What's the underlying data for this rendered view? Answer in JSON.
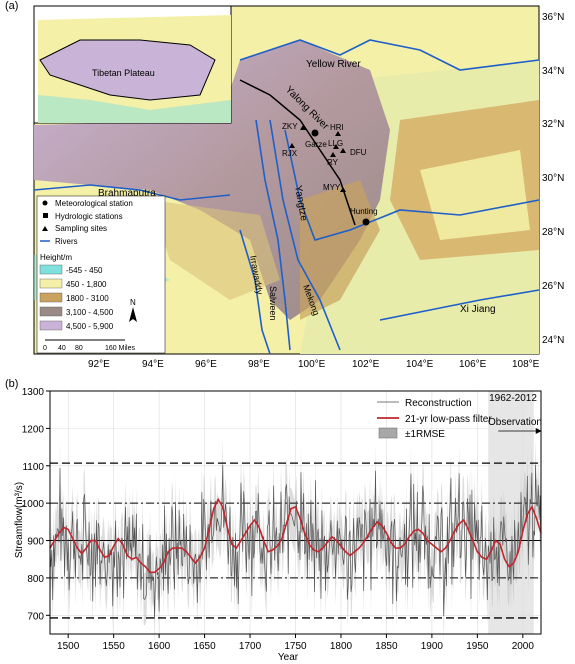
{
  "panel_a": {
    "label": "(a)",
    "lat_ticks": [
      "36°N",
      "34°N",
      "32°N",
      "30°N",
      "28°N",
      "26°N",
      "24°N"
    ],
    "lon_ticks": [
      "92°E",
      "94°E",
      "96°E",
      "98°E",
      "100°E",
      "102°E",
      "104°E",
      "106°E",
      "108°E"
    ],
    "inset_label": "Tibetan Plateau",
    "rivers": {
      "yellow": "Yellow River",
      "yalong": "Yalong River",
      "yangtze": "Yangtze",
      "brahmaputra": "Brahmaputra",
      "irrawaddy": "Irrawaddy",
      "salween": "Salween",
      "mekong": "Mekong",
      "xijiang": "Xi Jiang"
    },
    "sites": {
      "zky": "ZKY",
      "garze": "Garze",
      "hri": "HRI",
      "llg": "LLG",
      "dfu": "DFU",
      "ry": "RY",
      "rjx": "RJX",
      "myy": "MYY",
      "hunting": "Hunting"
    },
    "legend": {
      "met": "Meteorological station",
      "hydro": "Hydrologic stations",
      "sampling": "Sampling sites",
      "rivers": "Rivers",
      "height_title": "Height/m",
      "h1": "-545 - 450",
      "h2": "450 - 1,800",
      "h3": "1800 - 3100",
      "h4": "3,100 - 4,500",
      "h5": "4,500 - 5,900"
    },
    "north": "N",
    "scale": [
      "0",
      "40",
      "80",
      "160 Miles"
    ],
    "colors": {
      "h1": "#7fe0dc",
      "h2": "#f4f0a8",
      "h3": "#c8a25e",
      "h4": "#9a8a86",
      "h5": "#c9b3d6",
      "river": "#1f5fc9"
    }
  },
  "panel_b": {
    "label": "(b)",
    "ylabel": "Streamflow(m³/s)",
    "xlabel": "Year"
  },
  "chart_data": {
    "type": "line",
    "xlim": [
      1480,
      2020
    ],
    "ylim": [
      650,
      1300
    ],
    "xticks": [
      1500,
      1550,
      1600,
      1650,
      1700,
      1750,
      1800,
      1850,
      1900,
      1950,
      2000
    ],
    "yticks": [
      700,
      800,
      900,
      1000,
      1100,
      1200,
      1300
    ],
    "legend": [
      "Reconstruction",
      "21-yr low-pass filter",
      "±1RMSE"
    ],
    "legend_position": "top-right",
    "observation_period": {
      "label": "1962-2012",
      "note": "Observation",
      "start": 1962,
      "end": 2012
    },
    "mean": 900,
    "sd1_lines": [
      800,
      1000
    ],
    "sd2_lines": [
      693,
      1107
    ],
    "lowpass": {
      "x": [
        1480,
        1485,
        1490,
        1495,
        1500,
        1505,
        1510,
        1515,
        1520,
        1525,
        1530,
        1535,
        1540,
        1545,
        1550,
        1555,
        1560,
        1565,
        1570,
        1575,
        1580,
        1585,
        1590,
        1595,
        1600,
        1605,
        1610,
        1615,
        1620,
        1625,
        1630,
        1635,
        1640,
        1645,
        1650,
        1655,
        1660,
        1665,
        1670,
        1675,
        1680,
        1685,
        1690,
        1695,
        1700,
        1705,
        1710,
        1715,
        1720,
        1725,
        1730,
        1735,
        1740,
        1745,
        1750,
        1755,
        1760,
        1765,
        1770,
        1775,
        1780,
        1785,
        1790,
        1795,
        1800,
        1805,
        1810,
        1815,
        1820,
        1825,
        1830,
        1835,
        1840,
        1845,
        1850,
        1855,
        1860,
        1865,
        1870,
        1875,
        1880,
        1885,
        1890,
        1895,
        1900,
        1905,
        1910,
        1915,
        1920,
        1925,
        1930,
        1935,
        1940,
        1945,
        1950,
        1955,
        1960,
        1965,
        1970,
        1975,
        1980,
        1985,
        1990,
        1995,
        2000,
        2005,
        2010,
        2015,
        2020
      ],
      "y": [
        880,
        900,
        920,
        935,
        930,
        905,
        880,
        865,
        880,
        900,
        900,
        875,
        855,
        860,
        885,
        905,
        890,
        860,
        850,
        855,
        840,
        830,
        815,
        815,
        825,
        840,
        870,
        880,
        880,
        880,
        870,
        855,
        840,
        855,
        880,
        930,
        985,
        1010,
        990,
        935,
        890,
        880,
        900,
        920,
        940,
        955,
        935,
        900,
        870,
        875,
        885,
        905,
        945,
        985,
        990,
        960,
        920,
        890,
        875,
        870,
        880,
        895,
        910,
        900,
        885,
        870,
        860,
        870,
        880,
        895,
        915,
        935,
        950,
        940,
        920,
        895,
        880,
        880,
        890,
        910,
        925,
        930,
        920,
        900,
        890,
        880,
        870,
        880,
        900,
        925,
        945,
        955,
        930,
        900,
        870,
        855,
        850,
        870,
        900,
        890,
        850,
        830,
        840,
        870,
        925,
        970,
        990,
        960,
        920
      ]
    },
    "reconstruction_summary": "annual values fluctuating roughly between 700 and 1250"
  }
}
